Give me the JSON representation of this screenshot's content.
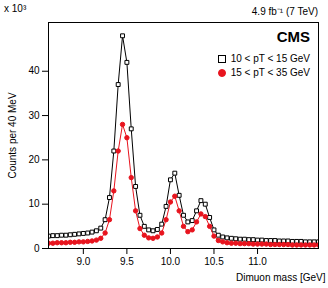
{
  "chart_data": {
    "type": "line",
    "title": "CMS",
    "subtitle": "4.9 fb⁻¹ (7 TeV)",
    "annotations": [
      "x 10³"
    ],
    "x_label": "Dimuon mass [GeV]",
    "y_label": "Counts per 40 MeV",
    "xlim": [
      8.6,
      11.7
    ],
    "xticks": [
      9,
      9.5,
      10,
      10.5,
      11
    ],
    "ylim": [
      0,
      51
    ],
    "yticks": [
      0,
      10,
      20,
      30,
      40
    ],
    "grid": false,
    "legend": "top-right",
    "x": [
      8.6,
      8.65,
      8.7,
      8.75,
      8.8,
      8.85,
      8.9,
      8.95,
      9.0,
      9.05,
      9.1,
      9.15,
      9.2,
      9.25,
      9.3,
      9.35,
      9.4,
      9.45,
      9.5,
      9.55,
      9.6,
      9.65,
      9.7,
      9.75,
      9.8,
      9.85,
      9.9,
      9.95,
      10.0,
      10.05,
      10.1,
      10.15,
      10.2,
      10.25,
      10.3,
      10.35,
      10.4,
      10.45,
      10.5,
      10.55,
      10.6,
      10.65,
      10.7,
      10.75,
      10.8,
      10.85,
      10.9,
      10.95,
      11.0,
      11.05,
      11.1,
      11.15,
      11.2,
      11.25,
      11.3,
      11.35,
      11.4,
      11.45,
      11.5,
      11.55,
      11.6,
      11.65,
      11.7
    ],
    "series": [
      {
        "name": "10 < pT < 15 GeV",
        "color": "#000000",
        "marker": "open_square",
        "line_style": "solid",
        "values": [
          2.8,
          2.9,
          2.9,
          3.0,
          3.0,
          3.1,
          3.2,
          3.3,
          3.4,
          3.5,
          3.7,
          4.0,
          4.6,
          6.5,
          11.5,
          22,
          37,
          48,
          42,
          27,
          14,
          7.5,
          5.0,
          4.2,
          4.0,
          4.3,
          5.5,
          9.5,
          15.5,
          17,
          12,
          7.5,
          6.0,
          6.3,
          8.5,
          10.8,
          10.0,
          7.0,
          4.2,
          3.0,
          2.6,
          2.4,
          2.3,
          2.2,
          2.1,
          2.1,
          2.0,
          2.0,
          1.9,
          1.9,
          1.8,
          1.8,
          1.8,
          1.7,
          1.7,
          1.7,
          1.6,
          1.6,
          1.6,
          1.5,
          1.5,
          1.5,
          1.5
        ]
      },
      {
        "name": "15 < pT < 35 GeV",
        "color": "#e8141e",
        "marker": "circle",
        "line_style": "solid",
        "values": [
          1.2,
          1.2,
          1.3,
          1.3,
          1.3,
          1.4,
          1.4,
          1.5,
          1.5,
          1.6,
          1.7,
          1.9,
          2.3,
          3.5,
          6.5,
          13,
          22,
          28,
          25,
          16,
          8.5,
          4.5,
          3.0,
          2.4,
          2.3,
          2.6,
          3.5,
          6.5,
          10.5,
          11.8,
          8.5,
          5.0,
          3.8,
          4.2,
          6.0,
          7.8,
          7.2,
          5.0,
          2.8,
          1.8,
          1.5,
          1.3,
          1.2,
          1.2,
          1.1,
          1.1,
          1.1,
          1.0,
          1.0,
          1.0,
          1.0,
          0.9,
          0.9,
          0.9,
          0.9,
          0.9,
          0.8,
          0.8,
          0.8,
          0.8,
          0.8,
          0.8,
          0.8
        ]
      }
    ]
  }
}
